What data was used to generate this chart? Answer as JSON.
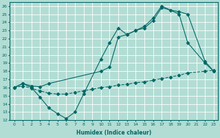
{
  "xlabel": "Humidex (Indice chaleur)",
  "bg_color": "#b2ddd4",
  "grid_color": "#ffffff",
  "line_color": "#006666",
  "xlim": [
    -0.5,
    23.5
  ],
  "ylim": [
    12,
    26.5
  ],
  "xticks": [
    0,
    1,
    2,
    3,
    4,
    5,
    6,
    7,
    8,
    9,
    10,
    11,
    12,
    13,
    14,
    15,
    16,
    17,
    18,
    19,
    20,
    21,
    22,
    23
  ],
  "yticks": [
    12,
    13,
    14,
    15,
    16,
    17,
    18,
    19,
    20,
    21,
    22,
    23,
    24,
    25,
    26
  ],
  "line1_x": [
    0,
    1,
    2,
    3,
    4,
    5,
    6,
    7,
    8,
    10,
    11,
    12,
    13,
    14,
    15,
    16,
    17,
    19,
    20,
    22,
    23
  ],
  "line1_y": [
    16,
    16.5,
    16,
    14.8,
    13.5,
    12.8,
    12.2,
    13,
    15.2,
    19.5,
    21.5,
    23.3,
    22.5,
    23,
    23.5,
    24.5,
    26,
    25,
    21.5,
    19,
    18
  ],
  "line2_x": [
    0,
    1,
    2,
    3,
    4,
    10,
    11,
    12,
    13,
    14,
    15,
    16,
    17,
    18,
    19,
    20,
    22,
    23
  ],
  "line2_y": [
    16,
    16.5,
    16.2,
    16.1,
    16.5,
    18,
    18.5,
    22.2,
    22.5,
    23,
    23.3,
    24.2,
    25.8,
    25.5,
    25.3,
    25,
    19.2,
    18
  ],
  "line3_x": [
    0,
    1,
    2,
    3,
    4,
    5,
    6,
    7,
    8,
    9,
    10,
    11,
    12,
    13,
    14,
    15,
    16,
    17,
    18,
    19,
    20,
    22,
    23
  ],
  "line3_y": [
    16,
    16.2,
    15.9,
    15.6,
    15.3,
    15.2,
    15.2,
    15.4,
    15.6,
    15.8,
    16.0,
    16.1,
    16.3,
    16.4,
    16.6,
    16.7,
    16.9,
    17.1,
    17.3,
    17.5,
    17.8,
    18.0,
    18.1
  ]
}
